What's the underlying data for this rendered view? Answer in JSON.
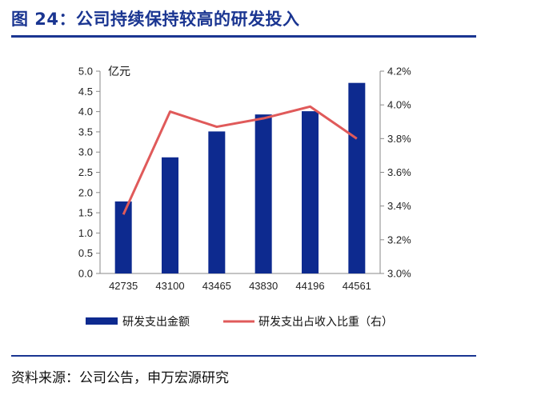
{
  "header": {
    "title": "图 24：公司持续保持较高的研发投入"
  },
  "footer": {
    "source": "资料来源：公司公告，申万宏源研究"
  },
  "colors": {
    "bar": "#0d2a8f",
    "line": "#e05a5a",
    "accent": "#1a3591"
  },
  "chart_data": {
    "type": "bar",
    "categories": [
      "42735",
      "43100",
      "43465",
      "43830",
      "44196",
      "44561"
    ],
    "y_unit_label": "亿元",
    "ylim": [
      0,
      5
    ],
    "yticks": [
      "0.0",
      "0.5",
      "1.0",
      "1.5",
      "2.0",
      "2.5",
      "3.0",
      "3.5",
      "4.0",
      "4.5",
      "5.0"
    ],
    "y2lim": [
      3.0,
      4.2
    ],
    "y2ticks": [
      "3.0%",
      "3.2%",
      "3.4%",
      "3.6%",
      "3.8%",
      "4.0%",
      "4.2%"
    ],
    "legend_position": "bottom",
    "grid": false,
    "series": [
      {
        "name": "研发支出金额",
        "type": "bar",
        "axis": "left",
        "values": [
          1.78,
          2.87,
          3.51,
          3.93,
          4.01,
          4.71
        ]
      },
      {
        "name": "研发支出占收入比重（右）",
        "type": "line",
        "axis": "right",
        "values": [
          3.35,
          3.96,
          3.87,
          3.92,
          3.99,
          3.8
        ]
      }
    ]
  }
}
